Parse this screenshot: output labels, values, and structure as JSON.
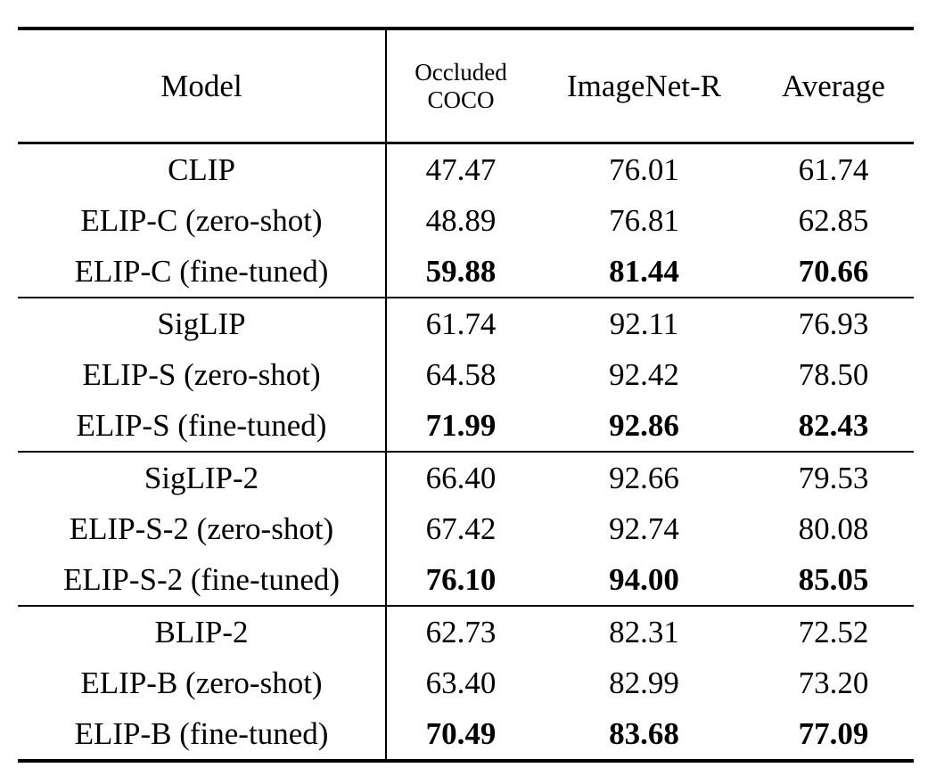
{
  "page": {
    "background_color": "#ffffff",
    "text_color": "#000000"
  },
  "table": {
    "columns": {
      "model": "Model",
      "occluded_coco_line1": "Occluded",
      "occluded_coco_line2": "COCO",
      "imagenet_r": "ImageNet-R",
      "average": "Average"
    },
    "groups": [
      {
        "rows": [
          {
            "model": "CLIP",
            "occluded_coco": "47.47",
            "imagenet_r": "76.01",
            "average": "61.74",
            "best": false
          },
          {
            "model": "ELIP-C (zero-shot)",
            "occluded_coco": "48.89",
            "imagenet_r": "76.81",
            "average": "62.85",
            "best": false
          },
          {
            "model": "ELIP-C (fine-tuned)",
            "occluded_coco": "59.88",
            "imagenet_r": "81.44",
            "average": "70.66",
            "best": true
          }
        ]
      },
      {
        "rows": [
          {
            "model": "SigLIP",
            "occluded_coco": "61.74",
            "imagenet_r": "92.11",
            "average": "76.93",
            "best": false
          },
          {
            "model": "ELIP-S (zero-shot)",
            "occluded_coco": "64.58",
            "imagenet_r": "92.42",
            "average": "78.50",
            "best": false
          },
          {
            "model": "ELIP-S (fine-tuned)",
            "occluded_coco": "71.99",
            "imagenet_r": "92.86",
            "average": "82.43",
            "best": true
          }
        ]
      },
      {
        "rows": [
          {
            "model": "SigLIP-2",
            "occluded_coco": "66.40",
            "imagenet_r": "92.66",
            "average": "79.53",
            "best": false
          },
          {
            "model": "ELIP-S-2 (zero-shot)",
            "occluded_coco": "67.42",
            "imagenet_r": "92.74",
            "average": "80.08",
            "best": false
          },
          {
            "model": "ELIP-S-2 (fine-tuned)",
            "occluded_coco": "76.10",
            "imagenet_r": "94.00",
            "average": "85.05",
            "best": true
          }
        ]
      },
      {
        "rows": [
          {
            "model": "BLIP-2",
            "occluded_coco": "62.73",
            "imagenet_r": "82.31",
            "average": "72.52",
            "best": false
          },
          {
            "model": "ELIP-B (zero-shot)",
            "occluded_coco": "63.40",
            "imagenet_r": "82.99",
            "average": "73.20",
            "best": false
          },
          {
            "model": "ELIP-B (fine-tuned)",
            "occluded_coco": "70.49",
            "imagenet_r": "83.68",
            "average": "77.09",
            "best": true
          }
        ]
      }
    ]
  }
}
